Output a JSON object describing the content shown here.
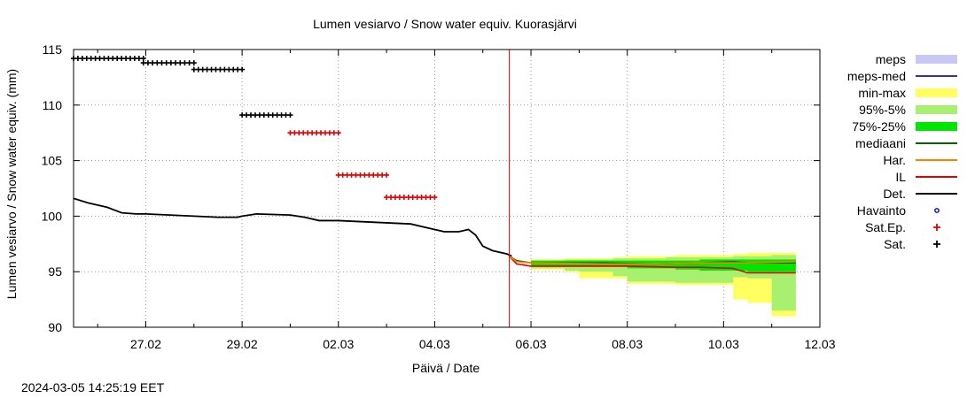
{
  "chart_data": {
    "type": "line",
    "title": "Lumen vesiarvo / Snow water equiv.  Kuorasjärvi",
    "xlabel": "Päivä / Date",
    "ylabel": "Lumen vesiarvo / Snow water equiv. (mm)",
    "xlim": [
      25.5,
      40.5
    ],
    "ylim": [
      90,
      115
    ],
    "x_ticks": [
      {
        "x": 27,
        "label": "27.02"
      },
      {
        "x": 29,
        "label": "29.02"
      },
      {
        "x": 31,
        "label": "02.03"
      },
      {
        "x": 33,
        "label": "04.03"
      },
      {
        "x": 35,
        "label": "06.03"
      },
      {
        "x": 37,
        "label": "08.03"
      },
      {
        "x": 39,
        "label": "10.03"
      },
      {
        "x": 41,
        "label": "12.03"
      }
    ],
    "y_ticks": [
      90,
      95,
      100,
      105,
      110,
      115
    ],
    "grid": true,
    "legend_position": "right",
    "now_marker_x": 34.55,
    "legend": [
      {
        "label": "meps",
        "style": "box",
        "color": "#c8c8f5"
      },
      {
        "label": "meps-med",
        "style": "line",
        "color": "#3030c0"
      },
      {
        "label": "min-max",
        "style": "box",
        "color": "#ffff60"
      },
      {
        "label": "95%-5%",
        "style": "box",
        "color": "#a8f070"
      },
      {
        "label": "75%-25%",
        "style": "box",
        "color": "#00e600"
      },
      {
        "label": "mediaani",
        "style": "line",
        "color": "#006400"
      },
      {
        "label": "Har.",
        "style": "line",
        "color": "#ff8000"
      },
      {
        "label": "IL",
        "style": "line",
        "color": "#e00000"
      },
      {
        "label": "Det.",
        "style": "line",
        "color": "#000000"
      },
      {
        "label": "Havainto",
        "style": "circle",
        "color": "#0000c0"
      },
      {
        "label": "Sat.Ep.",
        "style": "plus",
        "color": "#e00000"
      },
      {
        "label": "Sat.",
        "style": "plus",
        "color": "#000000"
      }
    ],
    "series": [
      {
        "name": "Det.",
        "color": "#000000",
        "x": [
          25.5,
          25.8,
          26.2,
          26.5,
          26.8,
          27.0,
          27.5,
          28.0,
          28.5,
          28.9,
          29.0,
          29.3,
          30.0,
          30.3,
          30.6,
          31.0,
          31.5,
          32.0,
          32.5,
          32.9,
          33.2,
          33.5,
          33.7,
          33.85,
          34.0,
          34.2,
          34.5,
          34.6
        ],
        "y": [
          101.6,
          101.2,
          100.8,
          100.3,
          100.2,
          100.2,
          100.1,
          100.0,
          99.9,
          99.9,
          100.0,
          100.2,
          100.1,
          99.9,
          99.6,
          99.6,
          99.5,
          99.4,
          99.3,
          98.9,
          98.6,
          98.6,
          98.8,
          98.3,
          97.3,
          96.9,
          96.6,
          96.4
        ]
      },
      {
        "name": "mediaani",
        "color": "#006400",
        "x": [
          34.55,
          34.7,
          35.0,
          36.5,
          37.5,
          38.5,
          39.2,
          39.5,
          40.5
        ],
        "y": [
          96.4,
          96.0,
          95.8,
          95.8,
          95.7,
          95.8,
          95.9,
          95.8,
          95.8
        ]
      },
      {
        "name": "IL",
        "color": "#e00000",
        "x": [
          34.55,
          34.7,
          35.0,
          36.0,
          37.0,
          38.0,
          38.5,
          39.2,
          39.5,
          40.5
        ],
        "y": [
          96.4,
          95.7,
          95.5,
          95.5,
          95.5,
          95.4,
          95.4,
          95.3,
          94.9,
          94.9
        ]
      },
      {
        "name": "Har.",
        "color": "#ff8000",
        "x": [
          34.55,
          34.7,
          35.0,
          36.5,
          37.5,
          38.5,
          39.5,
          40.5
        ],
        "y": [
          96.4,
          95.9,
          95.8,
          95.7,
          95.7,
          95.8,
          95.8,
          95.9
        ]
      }
    ],
    "bands": [
      {
        "name": "min-max",
        "color": "#ffff60",
        "x": [
          34.55,
          35.0,
          35.7,
          36.0,
          36.7,
          37.0,
          37.8,
          38.0,
          38.5,
          39.2,
          39.5,
          40.0,
          40.5
        ],
        "lower": [
          96.4,
          95.2,
          95.0,
          94.4,
          94.4,
          93.9,
          93.9,
          93.8,
          93.8,
          92.5,
          92.2,
          91.0,
          91.0
        ],
        "upper": [
          96.4,
          96.1,
          96.2,
          96.2,
          96.3,
          96.4,
          96.4,
          96.5,
          96.5,
          96.6,
          96.7,
          96.7,
          97.0
        ]
      },
      {
        "name": "95%-5%",
        "color": "#a8f070",
        "x": [
          34.55,
          35.0,
          35.7,
          36.0,
          36.7,
          37.0,
          37.8,
          38.0,
          38.5,
          39.2,
          39.5,
          40.0,
          40.5
        ],
        "lower": [
          96.4,
          95.3,
          95.1,
          95.0,
          94.6,
          94.1,
          94.1,
          94.0,
          94.0,
          94.5,
          94.4,
          91.5,
          91.5
        ],
        "upper": [
          96.4,
          96.0,
          96.1,
          96.1,
          96.2,
          96.2,
          96.3,
          96.3,
          96.3,
          96.4,
          96.4,
          96.5,
          96.6
        ]
      },
      {
        "name": "75%-25%",
        "color": "#00e600",
        "x": [
          34.55,
          35.0,
          36.0,
          37.0,
          38.0,
          38.5,
          39.2,
          39.5,
          40.5
        ],
        "lower": [
          96.4,
          95.5,
          95.5,
          95.3,
          95.2,
          95.1,
          95.1,
          95.0,
          95.0
        ],
        "upper": [
          96.4,
          96.0,
          96.0,
          96.0,
          96.0,
          96.1,
          96.1,
          96.1,
          96.2
        ]
      }
    ],
    "sat_segments": [
      {
        "name": "Sat.",
        "color": "#000000",
        "x_start": 25.5,
        "x_end": 26.95,
        "y": 114.2
      },
      {
        "name": "Sat.",
        "color": "#000000",
        "x_start": 26.95,
        "x_end": 28.0,
        "y": 113.8
      },
      {
        "name": "Sat.",
        "color": "#000000",
        "x_start": 28.0,
        "x_end": 29.0,
        "y": 113.2
      },
      {
        "name": "Sat.",
        "color": "#000000",
        "x_start": 29.0,
        "x_end": 30.0,
        "y": 109.1
      },
      {
        "name": "Sat.Ep.",
        "color": "#e00000",
        "x_start": 30.0,
        "x_end": 31.0,
        "y": 107.5
      },
      {
        "name": "Sat.Ep.",
        "color": "#e00000",
        "x_start": 31.0,
        "x_end": 32.0,
        "y": 103.7
      },
      {
        "name": "Sat.Ep.",
        "color": "#e00000",
        "x_start": 32.0,
        "x_end": 33.0,
        "y": 101.7
      }
    ]
  },
  "timestamp": "2024-03-05 14:25:19 EET"
}
